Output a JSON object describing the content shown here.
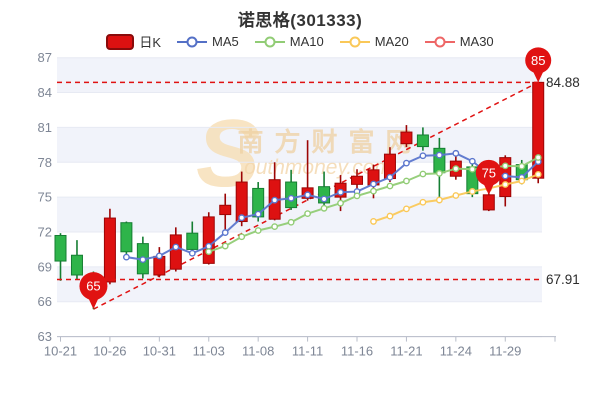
{
  "title": "诺思格(301333)",
  "legend": {
    "items": [
      {
        "label": "日K",
        "type": "rect",
        "color": "#dd1111",
        "border": "#8a0b0b"
      },
      {
        "label": "MA5",
        "type": "line",
        "color": "#5470c6"
      },
      {
        "label": "MA10",
        "type": "line",
        "color": "#91cc75"
      },
      {
        "label": "MA20",
        "type": "line",
        "color": "#fac858"
      },
      {
        "label": "MA30",
        "type": "line",
        "color": "#ee6666"
      }
    ]
  },
  "watermark": {
    "big_letter": "S",
    "text_cn": "南方财富网",
    "text_en": "outhmoney.com"
  },
  "chart_data": {
    "type": "candlestick",
    "dates": [
      "10-21",
      "10-24",
      "10-25",
      "10-26",
      "10-27",
      "10-28",
      "10-31",
      "11-01",
      "11-02",
      "11-03",
      "11-04",
      "11-07",
      "11-08",
      "11-09",
      "11-10",
      "11-11",
      "11-14",
      "11-15",
      "11-16",
      "11-17",
      "11-18",
      "11-21",
      "11-22",
      "11-23",
      "11-24",
      "11-25",
      "11-28",
      "11-29",
      "11-30",
      "12-01"
    ],
    "ohlc_open_close_low_high": [
      [
        71.7,
        69.5,
        67.8,
        71.9
      ],
      [
        70.0,
        68.3,
        67.9,
        71.3
      ],
      [
        68.3,
        67.91,
        65.36,
        68.6
      ],
      [
        67.7,
        73.2,
        67.5,
        74.0
      ],
      [
        72.8,
        70.3,
        69.8,
        72.9
      ],
      [
        71.0,
        68.4,
        68.0,
        71.6
      ],
      [
        68.3,
        69.9,
        68.1,
        70.7
      ],
      [
        68.8,
        71.75,
        68.6,
        72.4
      ],
      [
        71.9,
        70.5,
        70.0,
        72.9
      ],
      [
        69.3,
        73.3,
        69.2,
        73.7
      ],
      [
        73.5,
        74.3,
        72.2,
        75.3
      ],
      [
        72.9,
        76.3,
        72.5,
        77.2
      ],
      [
        75.75,
        73.3,
        72.9,
        76.3
      ],
      [
        73.1,
        76.5,
        73.0,
        78.0
      ],
      [
        76.3,
        74.1,
        73.9,
        77.35
      ],
      [
        74.9,
        75.8,
        74.7,
        79.9
      ],
      [
        75.9,
        74.5,
        74.0,
        77.2
      ],
      [
        75.0,
        76.2,
        73.8,
        76.9
      ],
      [
        76.1,
        76.8,
        74.95,
        77.4
      ],
      [
        76.05,
        77.35,
        74.9,
        77.8
      ],
      [
        76.6,
        78.7,
        76.3,
        79.3
      ],
      [
        79.6,
        80.6,
        79.3,
        81.2
      ],
      [
        80.35,
        79.35,
        79.0,
        81.0
      ],
      [
        79.2,
        77.1,
        75.0,
        80.1
      ],
      [
        76.8,
        78.1,
        76.5,
        78.6
      ],
      [
        77.6,
        75.3,
        75.0,
        78.2
      ],
      [
        73.9,
        75.2,
        73.8,
        75.5
      ],
      [
        75.05,
        78.4,
        74.2,
        78.6
      ],
      [
        77.8,
        76.5,
        76.1,
        78.2
      ],
      [
        76.63,
        84.88,
        76.2,
        84.88
      ]
    ],
    "series": [
      {
        "name": "MA5",
        "color": "#5b76cd",
        "values": [
          null,
          null,
          null,
          null,
          69.84,
          69.62,
          69.94,
          70.71,
          70.17,
          70.77,
          71.95,
          73.23,
          73.54,
          74.74,
          74.9,
          75.2,
          74.84,
          75.42,
          75.48,
          76.13,
          76.71,
          77.93,
          78.56,
          78.62,
          78.77,
          78.09,
          77.01,
          76.82,
          76.7,
          78.06
        ]
      },
      {
        "name": "MA10",
        "color": "#91cc75",
        "values": [
          null,
          null,
          null,
          null,
          null,
          null,
          null,
          null,
          null,
          70.31,
          70.79,
          71.59,
          72.13,
          72.46,
          72.84,
          73.58,
          74.04,
          74.48,
          75.11,
          75.52,
          75.96,
          76.39,
          76.99,
          77.05,
          77.45,
          77.4,
          77.47,
          77.69,
          77.66,
          78.41
        ]
      },
      {
        "name": "MA20",
        "color": "#fac858",
        "values": [
          null,
          null,
          null,
          null,
          null,
          null,
          null,
          null,
          null,
          null,
          null,
          null,
          null,
          null,
          null,
          null,
          null,
          null,
          null,
          72.91,
          73.37,
          73.99,
          74.56,
          74.75,
          75.14,
          75.49,
          75.75,
          76.09,
          76.39,
          76.96
        ]
      },
      {
        "name": "MA30",
        "color": "#ee6666",
        "values": [
          null,
          null,
          null,
          null,
          null,
          null,
          null,
          null,
          null,
          null,
          null,
          null,
          null,
          null,
          null,
          null,
          null,
          null,
          null,
          null,
          null,
          null,
          null,
          null,
          null,
          null,
          null,
          null,
          null,
          74.74
        ]
      }
    ],
    "y_axis": {
      "min": 63,
      "max": 87,
      "interval": 3,
      "labels": [
        87,
        84,
        81,
        78,
        75,
        72,
        69,
        66,
        63
      ]
    },
    "x_ticks": {
      "indices": [
        0,
        3,
        6,
        9,
        12,
        15,
        18,
        21,
        24,
        27
      ],
      "labels": [
        "10-21",
        "10-26",
        "10-31",
        "11-03",
        "11-08",
        "11-11",
        "11-16",
        "11-21",
        "11-24",
        "11-29"
      ]
    },
    "mark_lines": [
      {
        "value": 84.88,
        "label": "84.88"
      },
      {
        "value": 67.91,
        "label": "67.91"
      }
    ],
    "trend_line": {
      "from_index": 2,
      "from_value": 65.36,
      "to_index": 29,
      "to_value": 84.88
    },
    "badges": [
      {
        "label": "65",
        "index": 2,
        "value": 65.36,
        "r": 14
      },
      {
        "label": "75",
        "index": 26,
        "value": 75.2,
        "r": 13
      },
      {
        "label": "85",
        "index": 29,
        "value": 84.88,
        "r": 13
      }
    ],
    "colors": {
      "up": "#dd1111",
      "up_border": "#9c0505",
      "down": "#2eb44a",
      "down_border": "#157e32",
      "band": "#f1f3fa",
      "grid": "#e7eaf3",
      "axis": "#b7bcc8",
      "tick_text": "#7e8695",
      "markline": "#e01212",
      "badge": "#e01212",
      "label_text": "#2c2c2c",
      "watermark": "#eed0a2"
    },
    "legend_position": "top",
    "grid": true
  }
}
